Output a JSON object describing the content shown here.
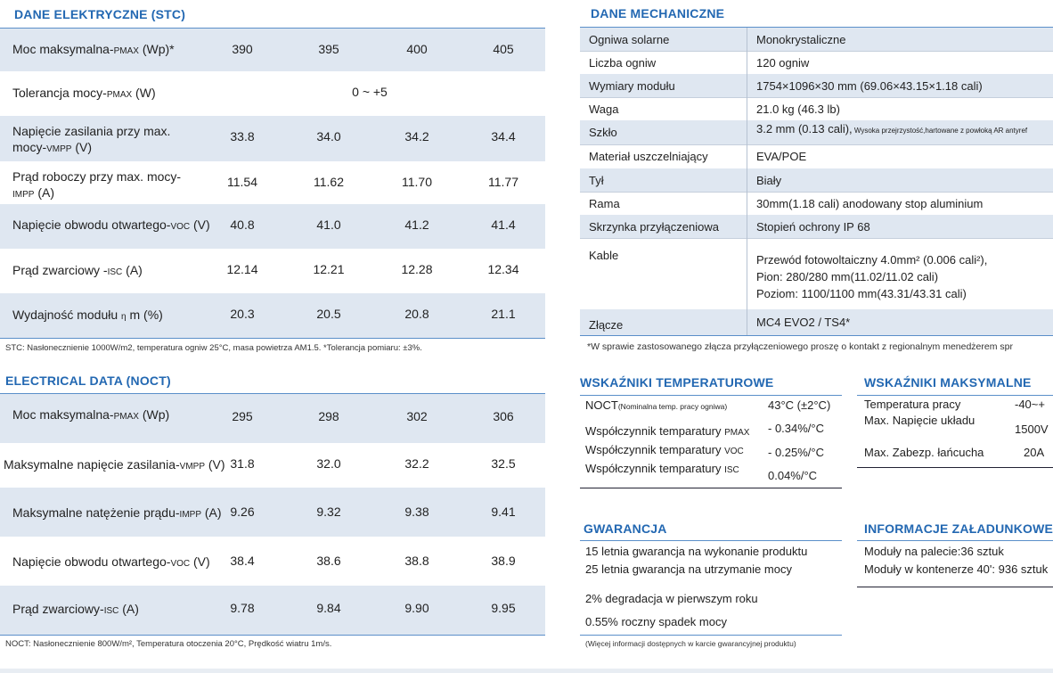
{
  "stc": {
    "title": "DANE ELEKTRYCZNE (STC)",
    "rows": [
      {
        "l1": "Moc maksymalna-",
        "sub": "PMAX",
        "l2": " (Wp)*",
        "values": [
          "390",
          "395",
          "400",
          "405"
        ]
      },
      {
        "l1": "Tolerancja mocy-",
        "sub": "PMAX",
        "l2": " (W)",
        "span": "0 ~ +5"
      },
      {
        "l1": "Napięcie zasilania przy max.",
        "l1b": "mocy-",
        "sub": "VMPP",
        "l2": " (V)",
        "values": [
          "33.8",
          "34.0",
          "34.2",
          "34.4"
        ]
      },
      {
        "l1": "Prąd roboczy przy max. mocy-",
        "sub": "IMPP",
        "l2": " (A)",
        "values": [
          "11.54",
          "11.62",
          "11.70",
          "11.77"
        ]
      },
      {
        "l1": "Napięcie obwodu otwartego-",
        "sub": "VOC",
        "l2": " (V)",
        "values": [
          "40.8",
          "41.0",
          "41.2",
          "41.4"
        ]
      },
      {
        "l1": "Prąd zwarciowy -",
        "sub": "ISC",
        "l2": " (A)",
        "values": [
          "12.14",
          "12.21",
          "12.28",
          "12.34"
        ]
      },
      {
        "l1": "Wydajność modułu ",
        "sub": "η",
        "l2": " m (%)",
        "values": [
          "20.3",
          "20.5",
          "20.8",
          "21.1"
        ]
      }
    ],
    "note": "STC: Nasłonecznienie 1000W/m2, temperatura ogniw 25°C, masa powietrza AM1.5.   *Tolerancja pomiaru: ±3%."
  },
  "noct": {
    "title": "ELECTRICAL DATA (NOCT)",
    "rows": [
      {
        "l1": "Moc maksymalna-",
        "sub": "PMAX",
        "l2": " (Wp)",
        "values": [
          "295",
          "298",
          "302",
          "306"
        ]
      },
      {
        "l1": "Maksymalne napięcie zasilania-",
        "sub": "VMPP",
        "l2": " (V)",
        "values": [
          "31.8",
          "32.0",
          "32.2",
          "32.5"
        ]
      },
      {
        "l1": "Maksymalne natężenie prądu-",
        "sub": "IMPP",
        "l2": " (A)",
        "values": [
          "9.26",
          "9.32",
          "9.38",
          "9.41"
        ]
      },
      {
        "l1": "Napięcie obwodu otwartego-",
        "sub": "VOC",
        "l2": " (V)",
        "values": [
          "38.4",
          "38.6",
          "38.8",
          "38.9"
        ]
      },
      {
        "l1": "Prąd zwarciowy-",
        "sub": "ISC",
        "l2": " (A)",
        "values": [
          "9.78",
          "9.84",
          "9.90",
          "9.95"
        ]
      }
    ],
    "note": "NOCT: Nasłonecznienie 800W/m²,  Temperatura otoczenia 20°C, Prędkość wiatru 1m/s."
  },
  "mech": {
    "title": "DANE MECHANICZNE",
    "rows": [
      {
        "label": "Ogniwa solarne",
        "value": "Monokrystaliczne"
      },
      {
        "label": "Liczba ogniw",
        "value": "120 ogniw"
      },
      {
        "label": "Wymiary modułu",
        "value": "1754×1096×30 mm (69.06×43.15×1.18 cali)"
      },
      {
        "label": "Waga",
        "value": "21.0 kg (46.3 lb)"
      },
      {
        "label": "Szkło",
        "value": "3.2 mm (0.13 cali),",
        "small": " Wysoka przejrzystość,hartowane z powłoką AR antyref"
      },
      {
        "label": "Materiał uszczelniający",
        "value": "EVA/POE"
      },
      {
        "label": "Tył",
        "value": "Biały"
      },
      {
        "label": "Rama",
        "value": "30mm(1.18 cali)  anodowany stop aluminium"
      },
      {
        "label": "Skrzynka przyłączeniowa",
        "value": "Stopień ochrony IP 68"
      },
      {
        "label": "Kable",
        "lines": [
          "Przewód fotowoltaiczny 4.0mm² (0.006 cali²),",
          "Pion:  280/280 mm(11.02/11.02 cali)",
          "Poziom: 1100/1100 mm(43.31/43.31 cali)"
        ]
      },
      {
        "label": "Złącze",
        "value": "MC4 EVO2 / TS4*"
      }
    ],
    "note": "*W sprawie zastosowanego złącza przyłączeniowego proszę o kontakt z regionalnym menedżerem spr"
  },
  "temp": {
    "title": "WSKAŹNIKI TEMPERATUROWE",
    "noct_label": "NOCT",
    "noct_small": "(Nominalna temp. pracy ogniwa)",
    "noct_value": "43°C (±2°C)",
    "rows": [
      {
        "label": "Współczynnik temparatury ",
        "sub": "PMAX",
        "value": "- 0.34%/°C"
      },
      {
        "label": "Współczynnik temparatury ",
        "sub": "VOC",
        "value": "- 0.25%/°C"
      },
      {
        "label": "Współczynnik temparatury ",
        "sub": "ISC",
        "value": "0.04%/°C"
      }
    ]
  },
  "max": {
    "title": "WSKAŹNIKI MAKSYMALNE",
    "rows": [
      {
        "label": "Temperatura pracy",
        "value": "-40~+"
      },
      {
        "label": "Max. Napięcie układu",
        "value": "1500V"
      },
      {
        "label": "Max. Zabezp. łańcucha",
        "value": "20A"
      }
    ]
  },
  "warranty": {
    "title": "GWARANCJA",
    "lines": [
      "15 letnia gwarancja na wykonanie produktu",
      "25 letnia gwarancja na utrzymanie mocy",
      "2% degradacja w pierwszym roku",
      "0.55% roczny spadek mocy"
    ],
    "note": "(Więcej informacji dostępnych w karcie gwarancyjnej produktu)"
  },
  "loading": {
    "title": "INFORMACJE ZAŁADUNKOWE",
    "lines": [
      {
        "label": "Moduły na palecie:",
        "value": "36 sztuk"
      },
      {
        "label": "Moduły w kontenerze 40':",
        "value": " 936 sztuk"
      }
    ]
  }
}
